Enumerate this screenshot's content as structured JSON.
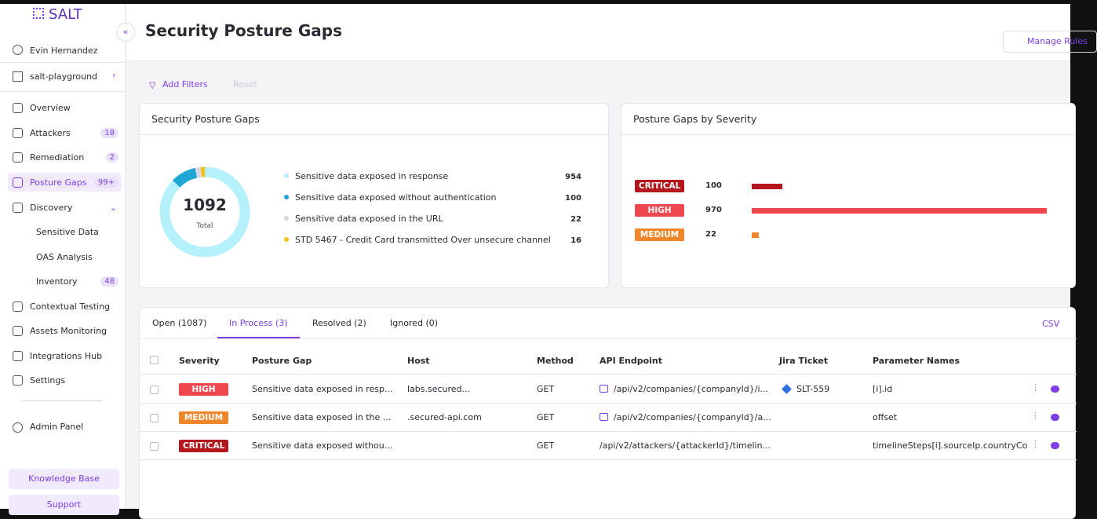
{
  "sidebar": {
    "logo": "SALT",
    "user": "Evin Hernandez",
    "workspace": "salt-playground",
    "nav": [
      {
        "label": "Overview"
      },
      {
        "label": "Attackers",
        "badge": "18"
      },
      {
        "label": "Remediation",
        "badge": "2"
      },
      {
        "label": "Posture Gaps",
        "badge": "99+"
      },
      {
        "label": "Discovery",
        "children": [
          {
            "label": "Sensitive Data"
          },
          {
            "label": "OAS Analysis"
          },
          {
            "label": "Inventory",
            "badge": "48"
          }
        ]
      },
      {
        "label": "Contextual Testing"
      },
      {
        "label": "Assets Monitoring"
      },
      {
        "label": "Integrations Hub"
      },
      {
        "label": "Settings"
      }
    ],
    "admin": "Admin Panel",
    "knowledge_base": "Knowledge Base",
    "support": "Support"
  },
  "header": {
    "title": "Security Posture Gaps",
    "manage": "Manage Rules"
  },
  "filters": {
    "add": "Add Filters",
    "reset": "Reset"
  },
  "summary": {
    "title": "Security Posture Gaps",
    "total": 1092,
    "total_label": "Total",
    "items": [
      {
        "name": "Sensitive data exposed in response",
        "count": 954,
        "color": "#b5f1fa"
      },
      {
        "name": "Sensitive data exposed without authentication",
        "count": 100,
        "color": "#1ea7d4"
      },
      {
        "name": "Sensitive data exposed in the URL",
        "count": 22,
        "color": "#d9d9e3"
      },
      {
        "name": "STD 5467 - Credit Card transmitted Over unsecure channel",
        "count": 16,
        "color": "#f4c21a"
      }
    ]
  },
  "severity": {
    "title": "Posture Gaps by Severity",
    "items": [
      {
        "label": "CRITICAL",
        "count": 100,
        "color": "#b3161c"
      },
      {
        "label": "HIGH",
        "count": 970,
        "color": "#f0464e"
      },
      {
        "label": "MEDIUM",
        "count": 22,
        "color": "#f0862a"
      }
    ]
  },
  "tabs": [
    "Open (1087)",
    "In Process (3)",
    "Resolved (2)",
    "Ignored (0)"
  ],
  "csv": "CSV",
  "table": {
    "columns": [
      "Severity",
      "Posture Gap",
      "Host",
      "Method",
      "API Endpoint",
      "Jira Ticket",
      "Parameter Names"
    ],
    "rows": [
      {
        "severity": "HIGH",
        "gap": "Sensitive data exposed in resp...",
        "host": "labs.secured...",
        "method": "GET",
        "endpoint": "/api/v2/companies/{companyId}/i...",
        "jira": "SLT-559",
        "params": "[i].id"
      },
      {
        "severity": "MEDIUM",
        "gap": "Sensitive data exposed in the ...",
        "host": ".secured-api.com",
        "method": "GET",
        "endpoint": "/api/v2/companies/{companyId}/a...",
        "params": "offset"
      },
      {
        "severity": "CRITICAL",
        "gap": "Sensitive data exposed withou...",
        "method": "GET",
        "endpoint": "/api/v2/attackers/{attackerId}/timelin...",
        "params": "timelineSteps[i].sourceIp.countryCo"
      }
    ]
  }
}
